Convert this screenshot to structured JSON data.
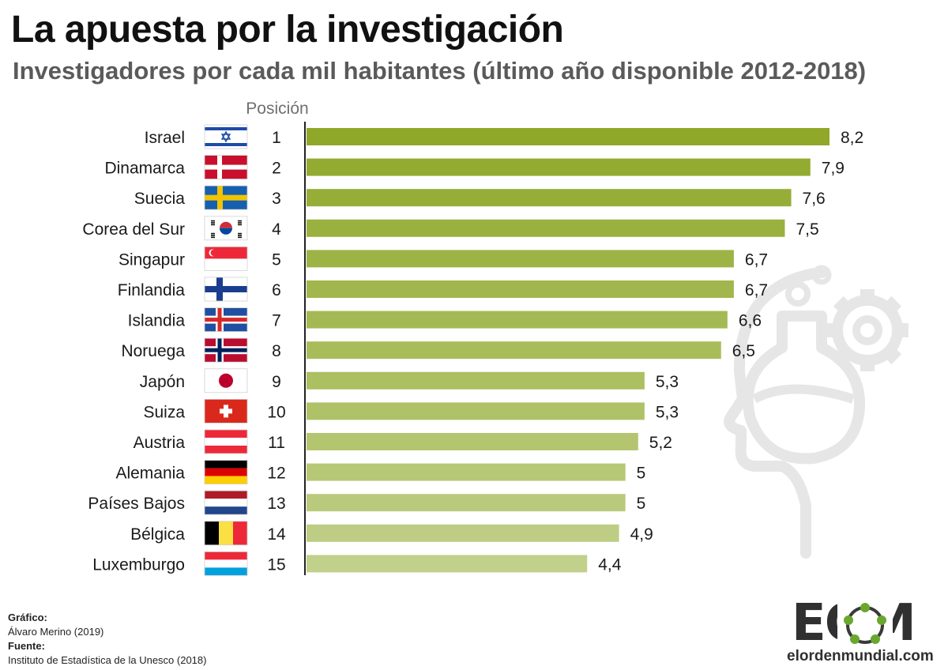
{
  "header": {
    "title": "La apuesta por la investigación",
    "subtitle": "Investigadores por cada mil habitantes (último año disponible 2012-2018)"
  },
  "rank_header": "Posición",
  "footer": {
    "graphic_label": "Gráfico:",
    "graphic_author": "Álvaro Merino (2019)",
    "source_label": "Fuente:",
    "source_text": "Instituto de Estadística de la Unesco (2018)"
  },
  "logo": {
    "letters": "EOM",
    "url": "elordenmundial.com"
  },
  "colors": {
    "bar_top": "#8fa82a",
    "bar_bottom": "#c1d08a",
    "axis": "#222222",
    "watermark": "#e6e6e6"
  },
  "chart_data": {
    "type": "bar",
    "orientation": "horizontal",
    "categories": [
      "Israel",
      "Dinamarca",
      "Suecia",
      "Corea del Sur",
      "Singapur",
      "Finlandia",
      "Islandia",
      "Noruega",
      "Japón",
      "Suiza",
      "Austria",
      "Alemania",
      "Países Bajos",
      "Bélgica",
      "Luxemburgo"
    ],
    "ranks": [
      "1",
      "2",
      "3",
      "4",
      "5",
      "6",
      "7",
      "8",
      "9",
      "10",
      "11",
      "12",
      "13",
      "14",
      "15"
    ],
    "values": [
      8.2,
      7.9,
      7.6,
      7.5,
      6.7,
      6.7,
      6.6,
      6.5,
      5.3,
      5.3,
      5.2,
      5.0,
      5.0,
      4.9,
      4.4
    ],
    "value_labels": [
      "8,2",
      "7,9",
      "7,6",
      "7,5",
      "6,7",
      "6,7",
      "6,6",
      "6,5",
      "5,3",
      "5,3",
      "5,2",
      "5",
      "5",
      "4,9",
      "4,4"
    ],
    "flags": [
      "israel-flag-icon",
      "denmark-flag-icon",
      "sweden-flag-icon",
      "south-korea-flag-icon",
      "singapore-flag-icon",
      "finland-flag-icon",
      "iceland-flag-icon",
      "norway-flag-icon",
      "japan-flag-icon",
      "switzerland-flag-icon",
      "austria-flag-icon",
      "germany-flag-icon",
      "netherlands-flag-icon",
      "belgium-flag-icon",
      "luxembourg-flag-icon"
    ],
    "xlim": [
      0,
      8.2
    ],
    "grid": false,
    "legend": "none"
  }
}
